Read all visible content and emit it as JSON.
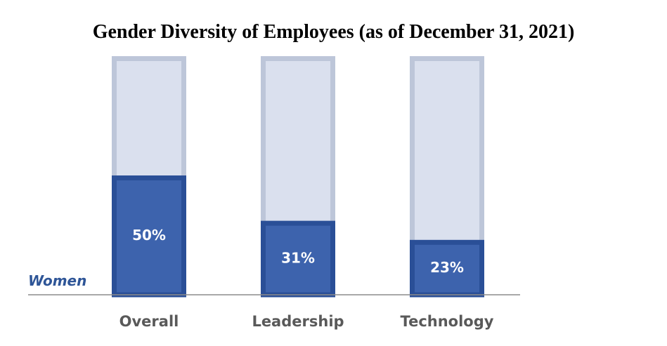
{
  "chart_data": {
    "type": "bar",
    "title": "Gender Diversity of Employees (as of December 31, 2021)",
    "categories": [
      "Overall",
      "Leadership",
      "Technology"
    ],
    "series": [
      {
        "name": "Women",
        "values": [
          50,
          31,
          23
        ],
        "labels": [
          "50%",
          "31%",
          "23%"
        ]
      }
    ],
    "ylim": [
      0,
      100
    ],
    "stacked_to_total": true,
    "grid": false,
    "xlabel": "",
    "ylabel": ""
  },
  "colors": {
    "women_fill": "#3d63ad",
    "women_border": "#2a4f97",
    "total_fill": "#dae0ee",
    "total_border": "#bdc6d9",
    "axis_line": "#8c8c8c",
    "category_text": "#595959",
    "series_label_text": "#2e5597",
    "value_text": "#ffffff",
    "title_text": "#000000"
  }
}
